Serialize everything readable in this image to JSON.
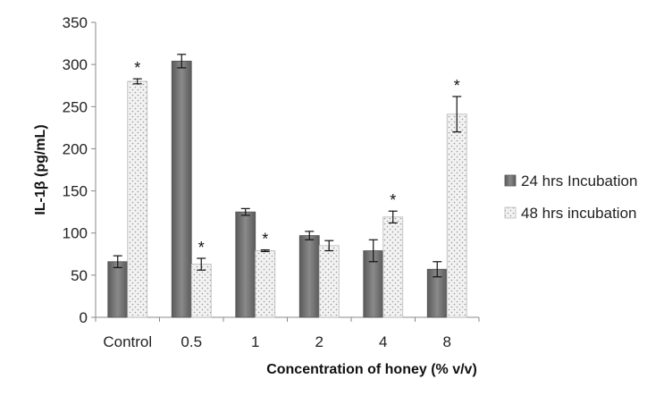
{
  "chart_data": {
    "type": "bar",
    "title": "",
    "xlabel": "Concentration of honey (% v/v)",
    "ylabel": "IL-1β (pg/mL)",
    "categories": [
      "Control",
      "0.5",
      "1",
      "2",
      "4",
      "8"
    ],
    "ylim": [
      0,
      350
    ],
    "yticks": [
      0,
      50,
      100,
      150,
      200,
      250,
      300,
      350
    ],
    "grid": false,
    "legend_position": "right",
    "series": [
      {
        "name": "24 hrs Incubation",
        "values": [
          66,
          304,
          125,
          97,
          79,
          57
        ],
        "errors": [
          7,
          8,
          4,
          5,
          13,
          9
        ],
        "significant": [
          false,
          false,
          false,
          false,
          false,
          false
        ],
        "color": "#6e6e6e",
        "pattern": "solid-gradient"
      },
      {
        "name": "48 hrs incubation",
        "values": [
          280,
          63,
          79,
          85,
          119,
          241
        ],
        "errors": [
          3,
          7,
          1,
          6,
          7,
          21
        ],
        "significant": [
          true,
          true,
          true,
          false,
          true,
          true
        ],
        "color": "#e6e6e6",
        "pattern": "dotted"
      }
    ],
    "annotation_symbol": "*"
  }
}
